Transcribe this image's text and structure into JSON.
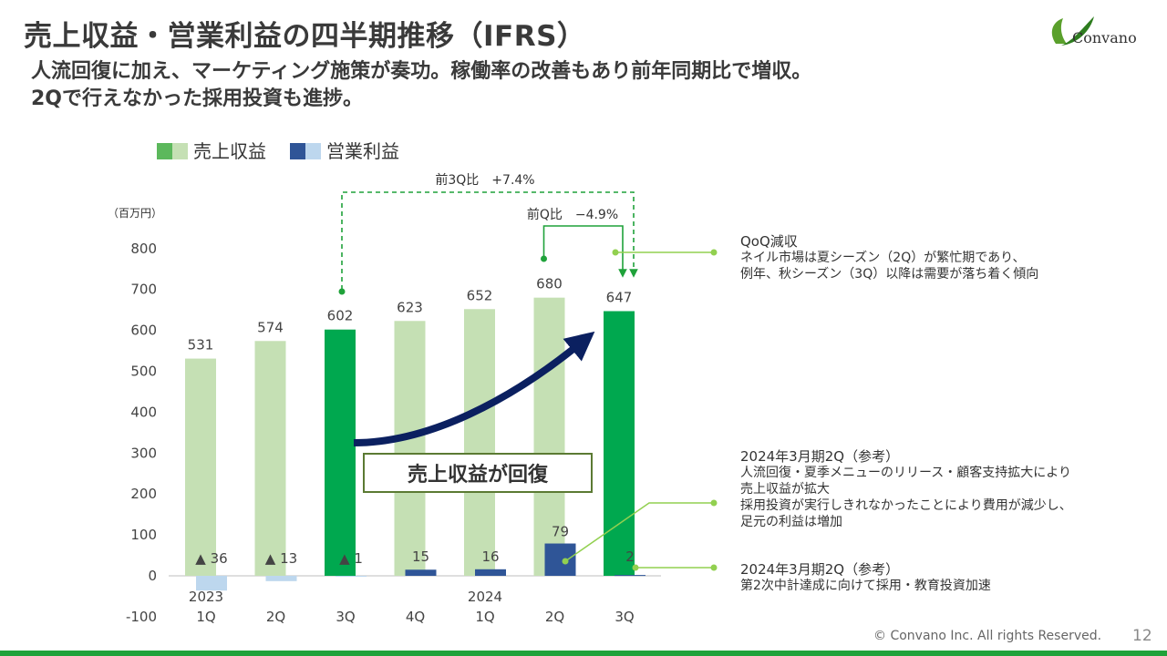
{
  "header": {
    "title": "売上収益・営業利益の四半期推移（IFRS）",
    "subtitle_line1": "人流回復に加え、マーケティング施策が奏功。稼働率の改善もあり前年同期比で増収。",
    "subtitle_line2": "2Qで行えなかった採用投資も進捗。",
    "logo_text": "Convano"
  },
  "colors": {
    "revenue_light": "#c5e0b4",
    "revenue_highlight": "#00a84f",
    "profit_dark": "#2f5597",
    "profit_light": "#bdd7ee",
    "arrow": "#0b2060",
    "annotation": "#92d050"
  },
  "chart_data": {
    "type": "bar",
    "unit_label": "（百万円）",
    "ylim": [
      -100,
      800
    ],
    "yticks": [
      -100,
      0,
      100,
      200,
      300,
      400,
      500,
      600,
      700,
      800
    ],
    "categories": [
      "1Q",
      "2Q",
      "3Q",
      "4Q",
      "1Q",
      "2Q",
      "3Q"
    ],
    "year_labels": [
      {
        "index": 0,
        "label": "2023"
      },
      {
        "index": 4,
        "label": "2024"
      }
    ],
    "series": [
      {
        "name": "売上収益",
        "values": [
          531,
          574,
          602,
          623,
          652,
          680,
          647
        ],
        "highlight": [
          2,
          6
        ]
      },
      {
        "name": "営業利益",
        "values": [
          -36,
          -13,
          -1,
          15,
          16,
          79,
          2
        ],
        "labels": [
          "▲ 36",
          "▲ 13",
          "▲ 1",
          "15",
          "16",
          "79",
          "2"
        ]
      }
    ],
    "annotations": {
      "yoy": "前3Q比　+7.4%",
      "qoq": "前Q比　−4.9%",
      "trend": "売上収益が回復"
    }
  },
  "notes": [
    {
      "head": "QoQ減収",
      "lines": [
        "ネイル市場は夏シーズン（2Q）が繁忙期であり、",
        "例年、秋シーズン（3Q）以降は需要が落ち着く傾向"
      ]
    },
    {
      "head": "2024年3月期2Q（参考）",
      "lines": [
        "人流回復・夏季メニューのリリース・顧客支持拡大により",
        "売上収益が拡大",
        "採用投資が実行しきれなかったことにより費用が減少し、",
        "足元の利益は増加"
      ]
    },
    {
      "head": "2024年3月期2Q（参考）",
      "lines": [
        "第2次中計達成に向けて採用・教育投資加速"
      ]
    }
  ],
  "footer": {
    "copyright": "© Convano Inc. All rights Reserved.",
    "page": "12"
  }
}
